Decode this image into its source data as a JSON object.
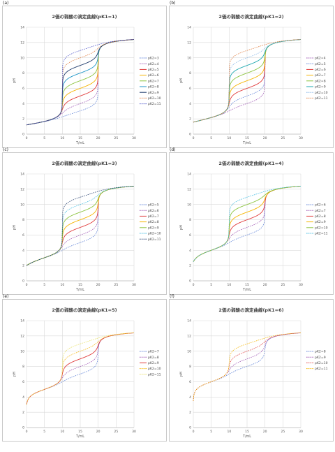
{
  "chart_data": [
    {
      "letter": "(a)",
      "type": "line",
      "title": "2価の弱酸の滴定曲線(pK1=1)",
      "xlabel": "T/mL",
      "ylabel": "pH",
      "xlim": [
        0,
        30
      ],
      "ylim": [
        0,
        14
      ],
      "xticks": [
        0,
        5,
        10,
        15,
        20,
        25,
        30
      ],
      "yticks": [
        0,
        2,
        4,
        6,
        8,
        10,
        12,
        14
      ],
      "pK1": 1,
      "legend_position": "right",
      "grid": true,
      "series": [
        {
          "name": "pK2=3",
          "pK2": 3,
          "color": "#5B7FD6",
          "dash": "dotted"
        },
        {
          "name": "pK2=4",
          "pK2": 4,
          "color": "#9A4FB0",
          "dash": "dotted"
        },
        {
          "name": "pK2=5",
          "pK2": 5,
          "color": "#E03A3A",
          "dash": "solid"
        },
        {
          "name": "pK2=6",
          "pK2": 6,
          "color": "#F5B400",
          "dash": "solid"
        },
        {
          "name": "pK2=7",
          "pK2": 7,
          "color": "#8CC43F",
          "dash": "solid"
        },
        {
          "name": "pK2=8",
          "pK2": 8,
          "color": "#1E96C8",
          "dash": "solid"
        },
        {
          "name": "pK2=9",
          "pK2": 9,
          "color": "#1F3A6B",
          "dash": "solid"
        },
        {
          "name": "pK2=10",
          "pK2": 10,
          "color": "#E07A3A",
          "dash": "dotted"
        },
        {
          "name": "pK2=11",
          "pK2": 11,
          "color": "#4A52C8",
          "dash": "dotted"
        }
      ]
    },
    {
      "letter": "(b)",
      "type": "line",
      "title": "2価の弱酸の滴定曲線(pK1=2)",
      "xlabel": "T/mL",
      "ylabel": "pH",
      "xlim": [
        0,
        30
      ],
      "ylim": [
        0,
        14
      ],
      "xticks": [
        0,
        5,
        10,
        15,
        20,
        25,
        30
      ],
      "yticks": [
        0,
        2,
        4,
        6,
        8,
        10,
        12,
        14
      ],
      "pK1": 2,
      "legend_position": "right",
      "grid": true,
      "series": [
        {
          "name": "pK2=4",
          "pK2": 4,
          "color": "#9A4FB0",
          "dash": "dotted"
        },
        {
          "name": "pK2=5",
          "pK2": 5,
          "color": "#5B7FD6",
          "dash": "dotted"
        },
        {
          "name": "pK2=6",
          "pK2": 6,
          "color": "#E03A3A",
          "dash": "solid"
        },
        {
          "name": "pK2=7",
          "pK2": 7,
          "color": "#F5B400",
          "dash": "solid"
        },
        {
          "name": "pK2=8",
          "pK2": 8,
          "color": "#8CC43F",
          "dash": "solid"
        },
        {
          "name": "pK2=9",
          "pK2": 9,
          "color": "#1EA8B0",
          "dash": "solid"
        },
        {
          "name": "pK2=10",
          "pK2": 10,
          "color": "#8AB8E8",
          "dash": "dotted"
        },
        {
          "name": "pK2=11",
          "pK2": 11,
          "color": "#E07A3A",
          "dash": "dotted"
        }
      ]
    },
    {
      "letter": "(c)",
      "type": "line",
      "title": "2価の弱酸の滴定曲線(pK1=3)",
      "xlabel": "T/mL",
      "ylabel": "pH",
      "xlim": [
        0,
        30
      ],
      "ylim": [
        0,
        14
      ],
      "xticks": [
        0,
        5,
        10,
        15,
        20,
        25,
        30
      ],
      "yticks": [
        0,
        2,
        4,
        6,
        8,
        10,
        12,
        14
      ],
      "pK1": 3,
      "legend_position": "right",
      "grid": true,
      "series": [
        {
          "name": "pK2=5",
          "pK2": 5,
          "color": "#5B7FD6",
          "dash": "dotted"
        },
        {
          "name": "pK2=6",
          "pK2": 6,
          "color": "#9A4FB0",
          "dash": "dotted"
        },
        {
          "name": "pK2=7",
          "pK2": 7,
          "color": "#E03A3A",
          "dash": "solid"
        },
        {
          "name": "pK2=8",
          "pK2": 8,
          "color": "#F5B400",
          "dash": "solid"
        },
        {
          "name": "pK2=9",
          "pK2": 9,
          "color": "#8CC43F",
          "dash": "solid"
        },
        {
          "name": "pK2=10",
          "pK2": 10,
          "color": "#38B8E0",
          "dash": "dotted"
        },
        {
          "name": "pK2=11",
          "pK2": 11,
          "color": "#1F3A6B",
          "dash": "dotted"
        }
      ]
    },
    {
      "letter": "(d)",
      "type": "line",
      "title": "2価の弱酸の滴定曲線(pK1=4)",
      "xlabel": "T/mL",
      "ylabel": "pH",
      "xlim": [
        0,
        30
      ],
      "ylim": [
        0,
        14
      ],
      "xticks": [
        0,
        5,
        10,
        15,
        20,
        25,
        30
      ],
      "yticks": [
        0,
        2,
        4,
        6,
        8,
        10,
        12,
        14
      ],
      "pK1": 4,
      "legend_position": "right",
      "grid": true,
      "series": [
        {
          "name": "pK2=6",
          "pK2": 6,
          "color": "#5B7FD6",
          "dash": "dotted"
        },
        {
          "name": "pK2=7",
          "pK2": 7,
          "color": "#9A4FB0",
          "dash": "dotted"
        },
        {
          "name": "pK2=8",
          "pK2": 8,
          "color": "#E03A3A",
          "dash": "solid"
        },
        {
          "name": "pK2=9",
          "pK2": 9,
          "color": "#F5B400",
          "dash": "solid"
        },
        {
          "name": "pK2=10",
          "pK2": 10,
          "color": "#8CC43F",
          "dash": "solid"
        },
        {
          "name": "pK2=11",
          "pK2": 11,
          "color": "#38B8E0",
          "dash": "dotted"
        }
      ]
    },
    {
      "letter": "(e)",
      "type": "line",
      "title": "2価の弱酸の滴定曲線(pK1=5)",
      "xlabel": "T/mL",
      "ylabel": "pH",
      "xlim": [
        0,
        30
      ],
      "ylim": [
        0,
        14
      ],
      "xticks": [
        0,
        5,
        10,
        15,
        20,
        25,
        30
      ],
      "yticks": [
        0,
        2,
        4,
        6,
        8,
        10,
        12,
        14
      ],
      "pK1": 5,
      "legend_position": "right",
      "grid": true,
      "series": [
        {
          "name": "pK2=7",
          "pK2": 7,
          "color": "#5B7FD6",
          "dash": "dotted"
        },
        {
          "name": "pK2=8",
          "pK2": 8,
          "color": "#9A4FB0",
          "dash": "dotted"
        },
        {
          "name": "pK2=9",
          "pK2": 9,
          "color": "#E03A3A",
          "dash": "solid"
        },
        {
          "name": "pK2=10",
          "pK2": 10,
          "color": "#F5B400",
          "dash": "dotted"
        },
        {
          "name": "pK2=11",
          "pK2": 11,
          "color": "#E8E060",
          "dash": "dotted"
        }
      ]
    },
    {
      "letter": "(f)",
      "type": "line",
      "title": "2価の弱酸の滴定曲線(pK1=6)",
      "xlabel": "T/mL",
      "ylabel": "pH",
      "xlim": [
        0,
        30
      ],
      "ylim": [
        0,
        14
      ],
      "xticks": [
        0,
        5,
        10,
        15,
        20,
        25,
        30
      ],
      "yticks": [
        0,
        2,
        4,
        6,
        8,
        10,
        12,
        14
      ],
      "pK1": 6,
      "legend_position": "right",
      "grid": true,
      "series": [
        {
          "name": "pK2=8",
          "pK2": 8,
          "color": "#5B7FD6",
          "dash": "dotted"
        },
        {
          "name": "pK2=9",
          "pK2": 9,
          "color": "#9A4FB0",
          "dash": "dotted"
        },
        {
          "name": "pK2=10",
          "pK2": 10,
          "color": "#E03A3A",
          "dash": "dotted"
        },
        {
          "name": "pK2=11",
          "pK2": 11,
          "color": "#F5B400",
          "dash": "dotted"
        }
      ]
    }
  ]
}
